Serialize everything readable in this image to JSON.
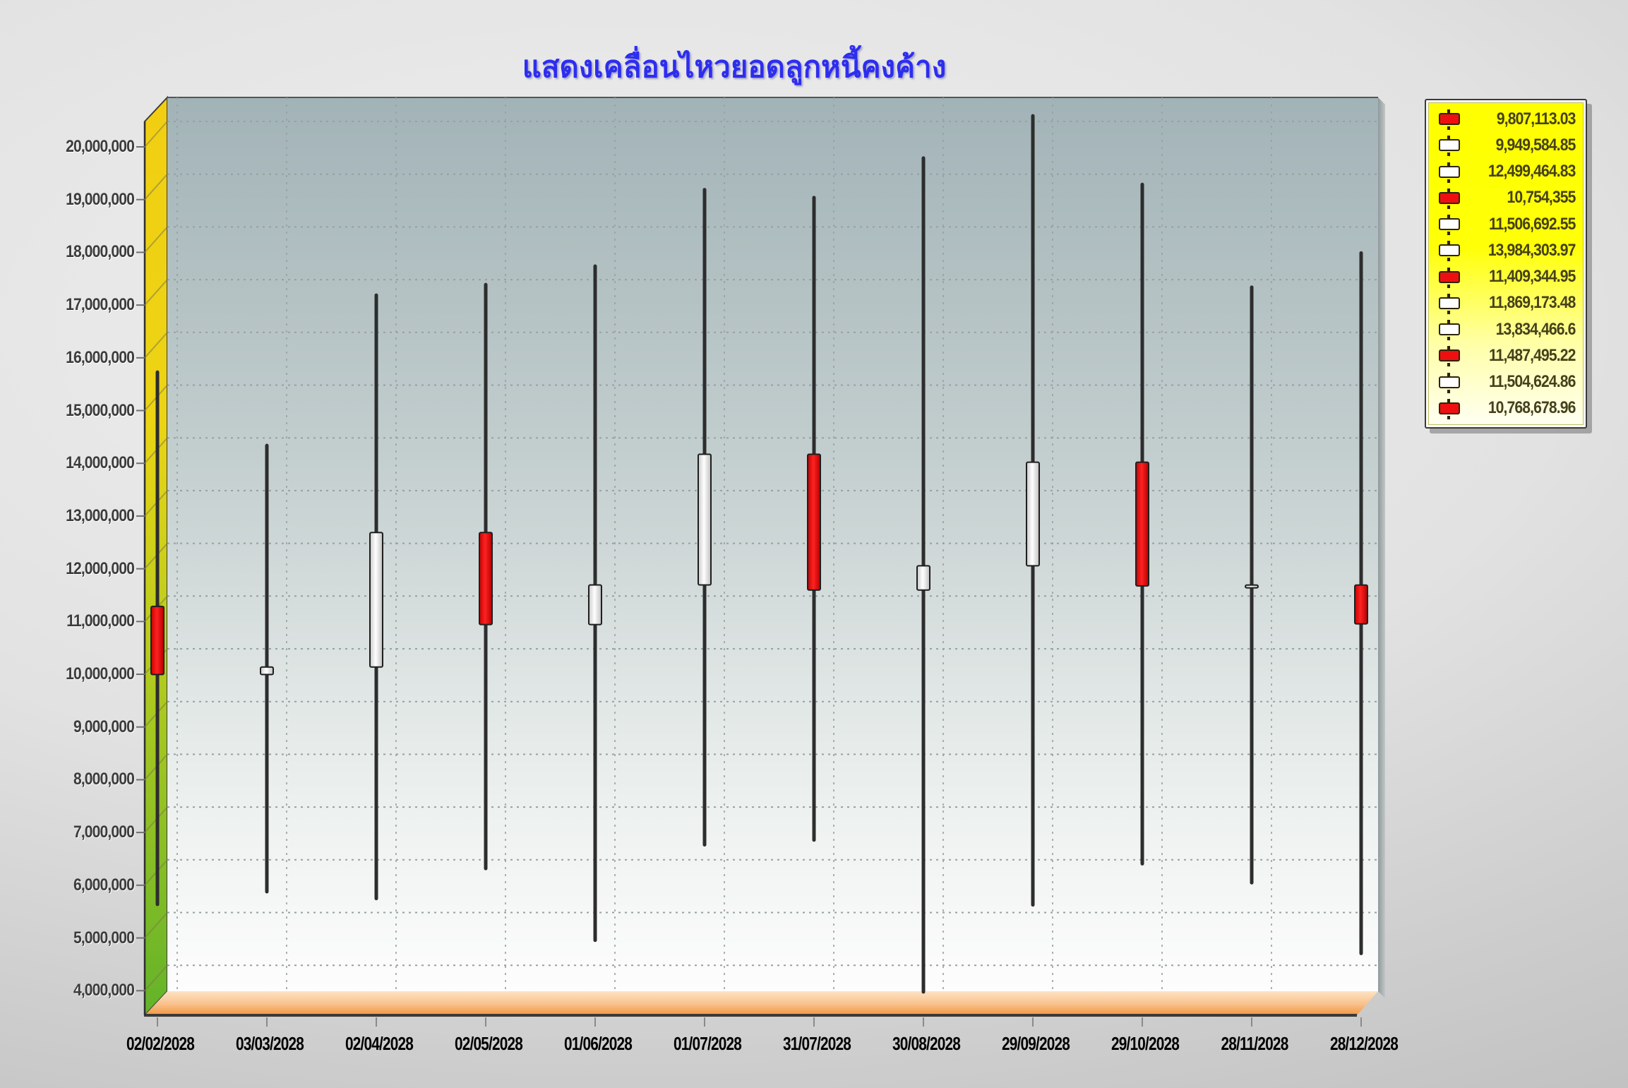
{
  "title": "แสดงเคลื่อนไหวยอดลูกหนี้คงค้าง",
  "colors": {
    "title_blue": "#2d2df0",
    "candle_down_red": "#ee1010",
    "candle_up_white": "#ffffff",
    "wick_dark": "#2d2d2d",
    "legend_yellow": "#ffff00",
    "wall_yellow_top": "#f2ce12",
    "wall_green_bottom": "#63b32a",
    "floor_orange": "#f5a35c",
    "back_wall_top": "#a2b3b7",
    "back_wall_bottom": "#fdfdfd",
    "gridline_grey": "#97a0a2"
  },
  "chart_data": {
    "type": "candlestick",
    "title": "แสดงเคลื่อนไหวยอดลูกหนี้คงค้าง",
    "xlabel": "",
    "ylabel": "",
    "ylim": [
      4000000,
      20000000
    ],
    "y_step": 1000000,
    "grid": "dotted",
    "legend_position": "top-right",
    "y_tick_labels": [
      "20,000,000",
      "19,000,000",
      "18,000,000",
      "17,000,000",
      "16,000,000",
      "15,000,000",
      "14,000,000",
      "13,000,000",
      "12,000,000",
      "11,000,000",
      "10,000,000",
      "9,000,000",
      "8,000,000",
      "7,000,000",
      "6,000,000",
      "5,000,000",
      "4,000,000"
    ],
    "candles": [
      {
        "date": "02/02/2028",
        "open": 11100000,
        "high": 15540000,
        "low": 5450000,
        "close": 9807113.03,
        "direction": "down"
      },
      {
        "date": "03/03/2028",
        "open": 9807113.03,
        "high": 14150000,
        "low": 5690000,
        "close": 9949584.85,
        "direction": "up"
      },
      {
        "date": "02/04/2028",
        "open": 9949584.85,
        "high": 17000000,
        "low": 5560000,
        "close": 12499464.83,
        "direction": "up"
      },
      {
        "date": "02/05/2028",
        "open": 12499464.83,
        "high": 17200000,
        "low": 6130000,
        "close": 10754355,
        "direction": "down"
      },
      {
        "date": "01/06/2028",
        "open": 10754355,
        "high": 17550000,
        "low": 4770000,
        "close": 11506692.55,
        "direction": "up"
      },
      {
        "date": "01/07/2028",
        "open": 11506692.55,
        "high": 19000000,
        "low": 6580000,
        "close": 13984303.97,
        "direction": "up"
      },
      {
        "date": "31/07/2028",
        "open": 13984303.97,
        "high": 18850000,
        "low": 6670000,
        "close": 11409344.95,
        "direction": "down"
      },
      {
        "date": "30/08/2028",
        "open": 11409344.95,
        "high": 19600000,
        "low": 3790000,
        "close": 11869173.48,
        "direction": "up"
      },
      {
        "date": "29/09/2028",
        "open": 11869173.48,
        "high": 20400000,
        "low": 5440000,
        "close": 13834466.6,
        "direction": "up"
      },
      {
        "date": "29/10/2028",
        "open": 13834466.6,
        "high": 19100000,
        "low": 6220000,
        "close": 11487495.22,
        "direction": "down"
      },
      {
        "date": "28/11/2028",
        "open": 11487495.22,
        "high": 17150000,
        "low": 5860000,
        "close": 11504624.86,
        "direction": "up"
      },
      {
        "date": "28/12/2028",
        "open": 11504624.86,
        "high": 17800000,
        "low": 4520000,
        "close": 10768678.96,
        "direction": "down"
      }
    ]
  },
  "legend": {
    "items": [
      {
        "value": "9,807,113.03",
        "color": "red"
      },
      {
        "value": "9,949,584.85",
        "color": "white"
      },
      {
        "value": "12,499,464.83",
        "color": "white"
      },
      {
        "value": "10,754,355",
        "color": "red"
      },
      {
        "value": "11,506,692.55",
        "color": "white"
      },
      {
        "value": "13,984,303.97",
        "color": "white"
      },
      {
        "value": "11,409,344.95",
        "color": "red"
      },
      {
        "value": "11,869,173.48",
        "color": "white"
      },
      {
        "value": "13,834,466.6",
        "color": "white"
      },
      {
        "value": "11,487,495.22",
        "color": "red"
      },
      {
        "value": "11,504,624.86",
        "color": "white"
      },
      {
        "value": "10,768,678.96",
        "color": "red"
      }
    ]
  }
}
